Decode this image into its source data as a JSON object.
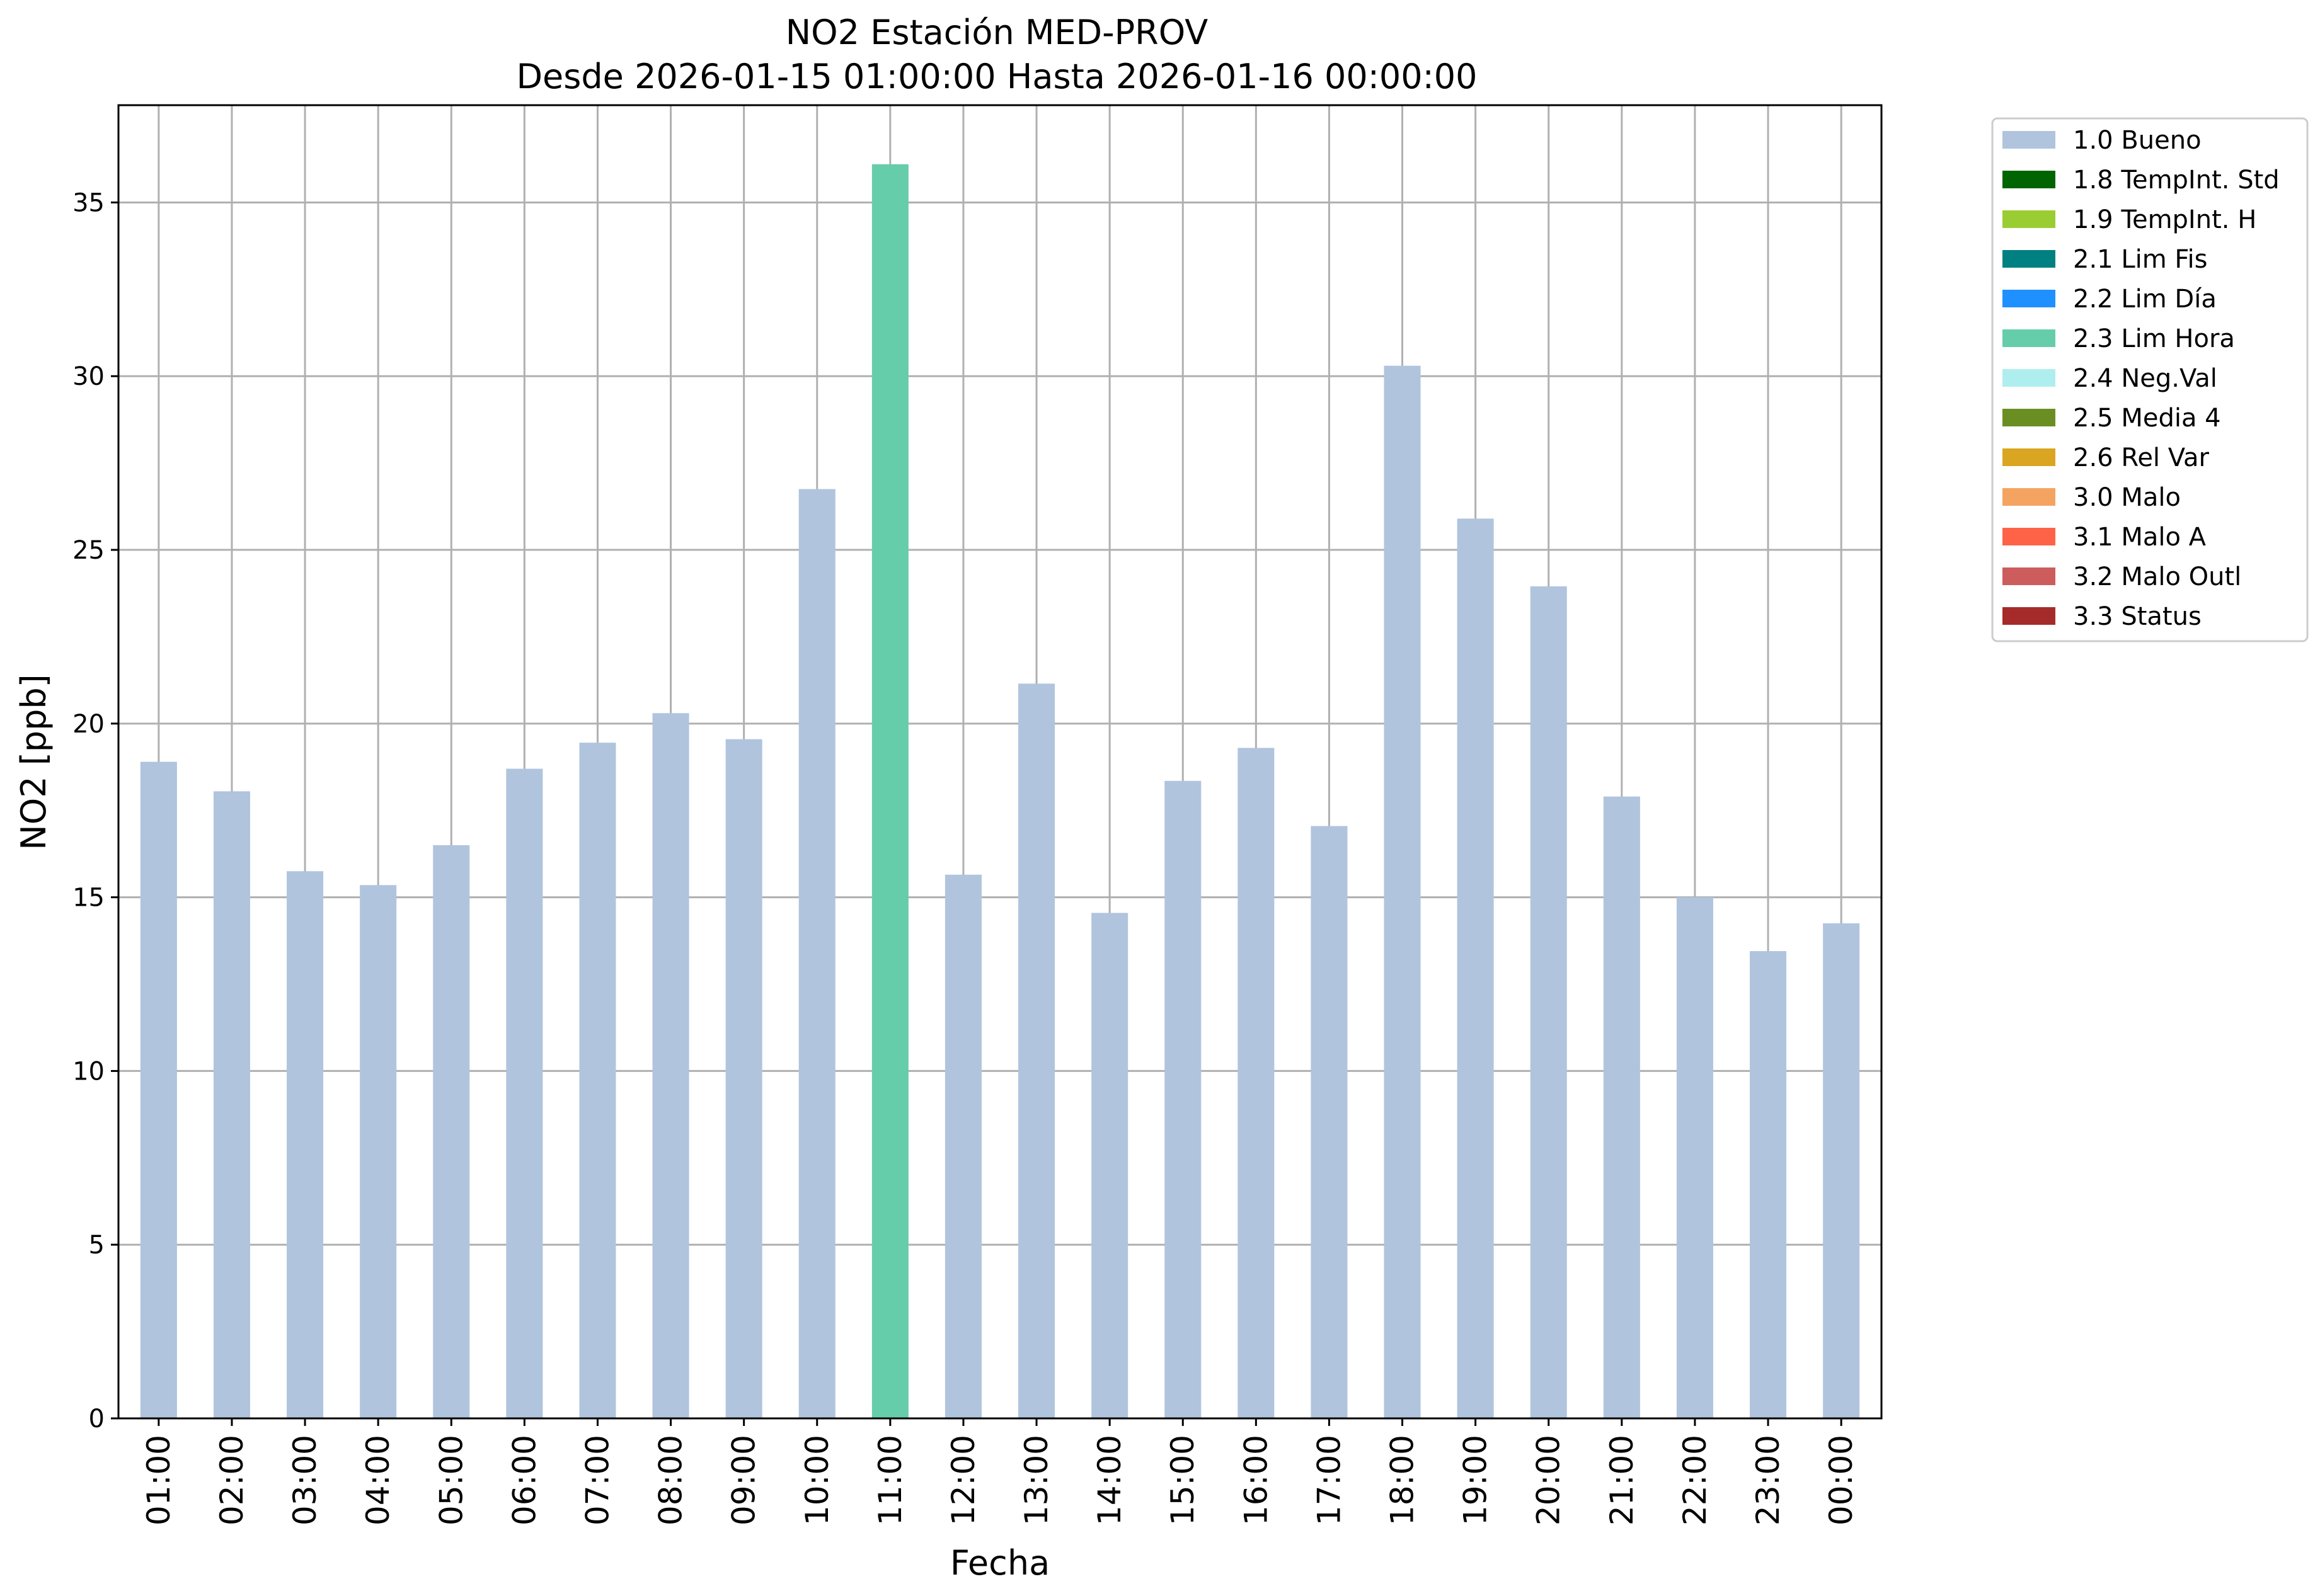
{
  "chart_data": {
    "type": "bar",
    "title": "NO2 Estación MED-PROV",
    "subtitle": "Desde 2026-01-15 01:00:00 Hasta 2026-01-16 00:00:00",
    "xlabel": "Fecha",
    "ylabel": "NO2 [ppb]",
    "ylim": [
      0,
      37.8
    ],
    "yticks": [
      0,
      5,
      10,
      15,
      20,
      25,
      30,
      35
    ],
    "grid": true,
    "legend_position": "outside-top-right",
    "categories": [
      "01:00",
      "02:00",
      "03:00",
      "04:00",
      "05:00",
      "06:00",
      "07:00",
      "08:00",
      "09:00",
      "10:00",
      "11:00",
      "12:00",
      "13:00",
      "14:00",
      "15:00",
      "16:00",
      "17:00",
      "18:00",
      "19:00",
      "20:00",
      "21:00",
      "22:00",
      "23:00",
      "00:00"
    ],
    "values": [
      18.9,
      18.05,
      15.75,
      15.35,
      16.5,
      18.7,
      19.45,
      20.3,
      19.55,
      26.75,
      36.1,
      15.65,
      21.15,
      14.55,
      18.35,
      19.3,
      17.05,
      30.3,
      25.9,
      23.95,
      17.9,
      15.0,
      13.45,
      14.25
    ],
    "flags": [
      "1.0 Bueno",
      "1.0 Bueno",
      "1.0 Bueno",
      "1.0 Bueno",
      "1.0 Bueno",
      "1.0 Bueno",
      "1.0 Bueno",
      "1.0 Bueno",
      "1.0 Bueno",
      "1.0 Bueno",
      "2.3 Lim Hora",
      "1.0 Bueno",
      "1.0 Bueno",
      "1.0 Bueno",
      "1.0 Bueno",
      "1.0 Bueno",
      "1.0 Bueno",
      "1.0 Bueno",
      "1.0 Bueno",
      "1.0 Bueno",
      "1.0 Bueno",
      "1.0 Bueno",
      "1.0 Bueno",
      "1.0 Bueno"
    ],
    "legend": [
      {
        "label": "1.0 Bueno",
        "color": "#b0c4de"
      },
      {
        "label": "1.8 TempInt. Std",
        "color": "#006400"
      },
      {
        "label": "1.9 TempInt. H",
        "color": "#9acd32"
      },
      {
        "label": "2.1 Lim Fis",
        "color": "#008080"
      },
      {
        "label": "2.2 Lim Día",
        "color": "#1e90ff"
      },
      {
        "label": "2.3 Lim Hora",
        "color": "#66cdaa"
      },
      {
        "label": "2.4 Neg.Val",
        "color": "#afeeee"
      },
      {
        "label": "2.5 Media 4",
        "color": "#6b8e23"
      },
      {
        "label": "2.6 Rel Var",
        "color": "#daa520"
      },
      {
        "label": "3.0 Malo",
        "color": "#f4a460"
      },
      {
        "label": "3.1 Malo A",
        "color": "#ff6347"
      },
      {
        "label": "3.2 Malo Outl",
        "color": "#cd5c5c"
      },
      {
        "label": "3.3 Status",
        "color": "#a52a2a"
      }
    ]
  }
}
